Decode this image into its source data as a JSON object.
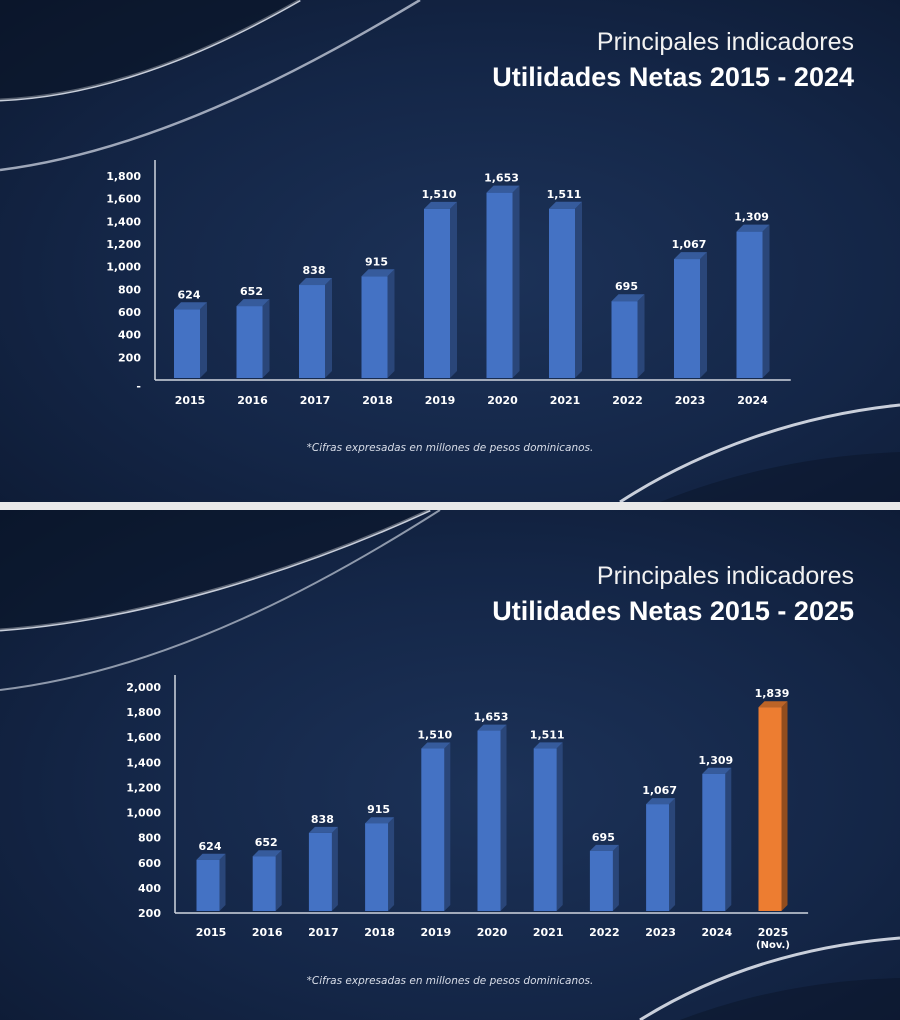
{
  "chart_data": [
    {
      "type": "bar",
      "title_line1": "Principales indicadores",
      "title_line2": "Utilidades Netas 2015 - 2024",
      "categories": [
        "2015",
        "2016",
        "2017",
        "2018",
        "2019",
        "2020",
        "2021",
        "2022",
        "2023",
        "2024"
      ],
      "values": [
        624,
        652,
        838,
        915,
        1510,
        1653,
        1511,
        695,
        1067,
        1309
      ],
      "value_labels": [
        "624",
        "652",
        "838",
        "915",
        "1,510",
        "1,653",
        "1,511",
        "695",
        "1,067",
        "1,309"
      ],
      "yticks": [
        "-",
        "200",
        "400",
        "600",
        "800",
        "1,000",
        "1,200",
        "1,400",
        "1,600",
        "1,800"
      ],
      "ylim": [
        0,
        1800
      ],
      "bar_colors": [
        "#4472c4",
        "#4472c4",
        "#4472c4",
        "#4472c4",
        "#4472c4",
        "#4472c4",
        "#4472c4",
        "#4472c4",
        "#4472c4",
        "#4472c4"
      ],
      "grid": false,
      "footnote": "*Cifras expresadas en millones de pesos dominicanos."
    },
    {
      "type": "bar",
      "title_line1": "Principales indicadores",
      "title_line2": "Utilidades Netas 2015 - 2025",
      "categories": [
        "2015",
        "2016",
        "2017",
        "2018",
        "2019",
        "2020",
        "2021",
        "2022",
        "2023",
        "2024",
        "2025"
      ],
      "category_sublabels": [
        "",
        "",
        "",
        "",
        "",
        "",
        "",
        "",
        "",
        "",
        "(Nov.)"
      ],
      "values": [
        624,
        652,
        838,
        915,
        1510,
        1653,
        1511,
        695,
        1067,
        1309,
        1839
      ],
      "value_labels": [
        "624",
        "652",
        "838",
        "915",
        "1,510",
        "1,653",
        "1,511",
        "695",
        "1,067",
        "1,309",
        "1,839"
      ],
      "yticks": [
        "200",
        "400",
        "600",
        "800",
        "1,000",
        "1,200",
        "1,400",
        "1,600",
        "1,800",
        "2,000"
      ],
      "ylim": [
        200,
        2000
      ],
      "bar_colors": [
        "#4472c4",
        "#4472c4",
        "#4472c4",
        "#4472c4",
        "#4472c4",
        "#4472c4",
        "#4472c4",
        "#4472c4",
        "#4472c4",
        "#4472c4",
        "#ed7d31"
      ],
      "grid": false,
      "footnote": "*Cifras expresadas en millones de pesos dominicanos."
    }
  ]
}
